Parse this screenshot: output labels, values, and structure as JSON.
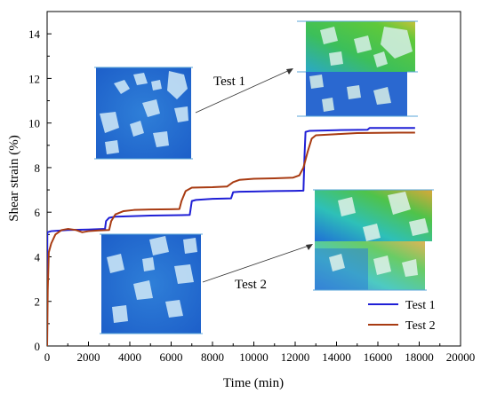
{
  "chart_data": {
    "type": "line",
    "xlabel": "Time (min)",
    "ylabel": "Shear strain (%)",
    "xlim": [
      0,
      20000
    ],
    "ylim": [
      0,
      15
    ],
    "xticks": [
      0,
      2000,
      4000,
      6000,
      8000,
      10000,
      12000,
      14000,
      16000,
      18000,
      20000
    ],
    "yticks": [
      0,
      2,
      4,
      6,
      8,
      10,
      12,
      14
    ],
    "grid": false,
    "legend_position": "bottom-right",
    "series": [
      {
        "name": "Test 1",
        "color": "#1f1fd6",
        "points": [
          [
            0,
            0
          ],
          [
            10,
            5.1
          ],
          [
            200,
            5.15
          ],
          [
            1000,
            5.2
          ],
          [
            2000,
            5.22
          ],
          [
            2800,
            5.25
          ],
          [
            2850,
            5.6
          ],
          [
            3000,
            5.75
          ],
          [
            3300,
            5.8
          ],
          [
            4000,
            5.82
          ],
          [
            5000,
            5.85
          ],
          [
            6500,
            5.87
          ],
          [
            6900,
            5.88
          ],
          [
            7000,
            6.5
          ],
          [
            7200,
            6.55
          ],
          [
            8000,
            6.6
          ],
          [
            8900,
            6.62
          ],
          [
            9000,
            6.9
          ],
          [
            9300,
            6.92
          ],
          [
            10000,
            6.93
          ],
          [
            11000,
            6.95
          ],
          [
            12000,
            6.96
          ],
          [
            12400,
            6.97
          ],
          [
            12450,
            8.5
          ],
          [
            12500,
            9.6
          ],
          [
            12700,
            9.65
          ],
          [
            14000,
            9.68
          ],
          [
            15500,
            9.7
          ],
          [
            15600,
            9.78
          ],
          [
            16000,
            9.78
          ],
          [
            17000,
            9.78
          ],
          [
            17800,
            9.78
          ]
        ]
      },
      {
        "name": "Test 2",
        "color": "#a83b12",
        "points": [
          [
            0,
            0
          ],
          [
            30,
            2.5
          ],
          [
            80,
            4.2
          ],
          [
            200,
            4.6
          ],
          [
            400,
            5.0
          ],
          [
            700,
            5.2
          ],
          [
            1000,
            5.25
          ],
          [
            1400,
            5.2
          ],
          [
            1700,
            5.1
          ],
          [
            2000,
            5.15
          ],
          [
            2500,
            5.18
          ],
          [
            3000,
            5.2
          ],
          [
            3100,
            5.6
          ],
          [
            3300,
            5.9
          ],
          [
            3700,
            6.05
          ],
          [
            4200,
            6.1
          ],
          [
            5000,
            6.12
          ],
          [
            6000,
            6.13
          ],
          [
            6400,
            6.14
          ],
          [
            6500,
            6.5
          ],
          [
            6700,
            6.95
          ],
          [
            7000,
            7.1
          ],
          [
            8000,
            7.12
          ],
          [
            8700,
            7.15
          ],
          [
            9000,
            7.35
          ],
          [
            9300,
            7.45
          ],
          [
            10000,
            7.5
          ],
          [
            11000,
            7.52
          ],
          [
            11900,
            7.55
          ],
          [
            12200,
            7.65
          ],
          [
            12400,
            8.0
          ],
          [
            12600,
            8.7
          ],
          [
            12800,
            9.3
          ],
          [
            13000,
            9.45
          ],
          [
            14000,
            9.5
          ],
          [
            15000,
            9.55
          ],
          [
            16000,
            9.56
          ],
          [
            17000,
            9.57
          ],
          [
            17800,
            9.57
          ]
        ]
      }
    ],
    "annotations": [
      {
        "text": "Test 1",
        "color": "#2a2ad0"
      },
      {
        "text": "Test 2",
        "color": "#a83b12"
      }
    ]
  }
}
